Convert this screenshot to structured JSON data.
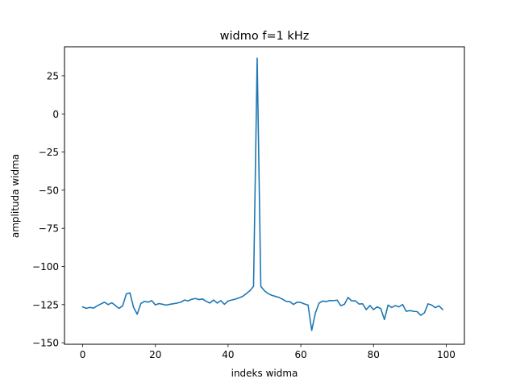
{
  "chart_data": {
    "type": "line",
    "title": "widmo f=1 kHz",
    "xlabel": "indeks widma",
    "ylabel": "amplituda widma",
    "xlim": [
      -5,
      105
    ],
    "ylim": [
      -151,
      44
    ],
    "xticks": [
      0,
      20,
      40,
      60,
      80,
      100
    ],
    "yticks": [
      25,
      0,
      -25,
      -50,
      -75,
      -100,
      -125,
      -150
    ],
    "ytick_labels": [
      "25",
      "0",
      "−25",
      "−50",
      "−75",
      "−100",
      "−125",
      "−150"
    ],
    "grid": false,
    "series": [
      {
        "color": "#1f77b4",
        "x": [
          0,
          1,
          2,
          3,
          4,
          5,
          6,
          7,
          8,
          9,
          10,
          11,
          12,
          13,
          14,
          15,
          16,
          17,
          18,
          19,
          20,
          21,
          22,
          23,
          24,
          25,
          26,
          27,
          28,
          29,
          30,
          31,
          32,
          33,
          34,
          35,
          36,
          37,
          38,
          39,
          40,
          41,
          42,
          43,
          44,
          45,
          46,
          47,
          48,
          49,
          50,
          51,
          52,
          53,
          54,
          55,
          56,
          57,
          58,
          59,
          60,
          61,
          62,
          63,
          64,
          65,
          66,
          67,
          68,
          69,
          70,
          71,
          72,
          73,
          74,
          75,
          76,
          77,
          78,
          79,
          80,
          81,
          82,
          83,
          84,
          85,
          86,
          87,
          88,
          89,
          90,
          91,
          92,
          93,
          94,
          95,
          96,
          97,
          98,
          99
        ],
        "values": [
          -126.5,
          -127.5,
          -126.8,
          -127.3,
          -125.8,
          -124.6,
          -123.4,
          -125.0,
          -123.8,
          -125.6,
          -127.5,
          -125.8,
          -118.0,
          -117.3,
          -126.8,
          -131.3,
          -124.3,
          -122.9,
          -123.4,
          -122.4,
          -125.2,
          -124.3,
          -124.8,
          -125.3,
          -124.8,
          -124.4,
          -124.0,
          -123.4,
          -122.0,
          -122.6,
          -121.5,
          -121.0,
          -121.7,
          -121.3,
          -122.9,
          -124.0,
          -122.0,
          -124.0,
          -122.4,
          -124.8,
          -122.6,
          -122.0,
          -121.4,
          -120.6,
          -119.6,
          -117.8,
          -115.9,
          -113.0,
          36.5,
          -113.0,
          -115.9,
          -117.8,
          -118.9,
          -119.6,
          -120.3,
          -121.5,
          -122.9,
          -123.1,
          -124.9,
          -123.4,
          -123.6,
          -124.6,
          -125.3,
          -141.9,
          -130.6,
          -124.1,
          -122.7,
          -123.0,
          -122.3,
          -122.4,
          -122.1,
          -125.7,
          -124.8,
          -120.3,
          -122.6,
          -122.5,
          -124.6,
          -124.5,
          -128.3,
          -125.6,
          -128.3,
          -126.5,
          -127.6,
          -134.8,
          -125.3,
          -126.9,
          -125.6,
          -126.5,
          -124.9,
          -129.4,
          -128.9,
          -129.4,
          -129.6,
          -132.0,
          -130.4,
          -124.5,
          -125.3,
          -127.0,
          -125.8,
          -128.2
        ]
      }
    ]
  }
}
